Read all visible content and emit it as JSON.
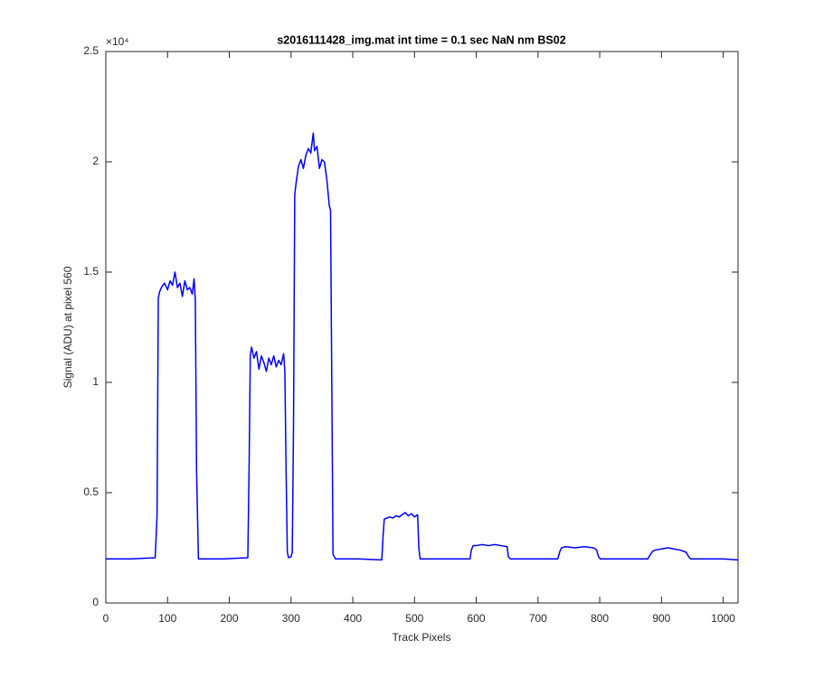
{
  "chart_data": {
    "type": "line",
    "title": "s2016111428_img.mat int time = 0.1 sec  NaN nm BS02",
    "xlabel": "Track Pixels",
    "ylabel": "Signal (ADU) at pixel 560",
    "y_exponent_label": "×10⁴",
    "x": [
      0,
      40,
      80,
      83,
      85,
      87,
      90,
      95,
      100,
      104,
      108,
      112,
      116,
      120,
      124,
      128,
      132,
      136,
      140,
      143,
      145,
      147,
      150,
      190,
      230,
      232,
      234,
      236,
      240,
      244,
      248,
      252,
      256,
      260,
      264,
      268,
      272,
      276,
      280,
      284,
      288,
      290,
      292,
      294,
      296,
      300,
      302,
      304,
      306,
      308,
      312,
      316,
      320,
      324,
      328,
      332,
      336,
      338,
      342,
      346,
      350,
      354,
      358,
      362,
      364,
      366,
      368,
      372,
      410,
      447,
      449,
      451,
      455,
      460,
      465,
      470,
      475,
      480,
      485,
      490,
      495,
      500,
      505,
      507,
      509,
      550,
      590,
      592,
      595,
      600,
      610,
      620,
      630,
      640,
      650,
      652,
      655,
      700,
      732,
      735,
      738,
      745,
      760,
      775,
      790,
      795,
      798,
      801,
      840,
      878,
      882,
      886,
      890,
      900,
      910,
      920,
      930,
      940,
      944,
      947,
      1000,
      1024
    ],
    "series": [
      {
        "name": "signal",
        "color": "#0000ff",
        "values": [
          2000,
          2000,
          2050,
          4000,
          13800,
          14100,
          14300,
          14500,
          14200,
          14600,
          14400,
          15000,
          14300,
          14500,
          13900,
          14600,
          14200,
          14300,
          14000,
          14700,
          13700,
          6000,
          2000,
          2000,
          2050,
          6000,
          11200,
          11600,
          11100,
          11400,
          10600,
          11200,
          10900,
          10500,
          11100,
          10800,
          11200,
          10700,
          11000,
          10800,
          11300,
          10500,
          6000,
          2300,
          2050,
          2100,
          2300,
          8000,
          18500,
          19000,
          19800,
          20100,
          19700,
          20300,
          20600,
          20400,
          21300,
          20500,
          20700,
          19700,
          20100,
          20000,
          19200,
          18000,
          17800,
          10000,
          2200,
          2000,
          2000,
          1950,
          3000,
          3800,
          3850,
          3900,
          3850,
          3950,
          3900,
          4000,
          4100,
          3950,
          4050,
          3900,
          4000,
          2500,
          2000,
          2000,
          2000,
          2400,
          2600,
          2600,
          2650,
          2600,
          2650,
          2600,
          2550,
          2100,
          2000,
          2000,
          2000,
          2300,
          2500,
          2550,
          2500,
          2550,
          2500,
          2400,
          2100,
          2000,
          2000,
          2000,
          2200,
          2350,
          2400,
          2450,
          2500,
          2450,
          2400,
          2300,
          2100,
          2000,
          2000,
          1950
        ]
      }
    ],
    "xlim": [
      0,
      1024
    ],
    "xticks": [
      0,
      100,
      200,
      300,
      400,
      500,
      600,
      700,
      800,
      900,
      1000
    ],
    "ylim": [
      0,
      25000
    ],
    "yticks": [
      0,
      {
        "value": 5000,
        "label": "0.5"
      },
      {
        "value": 10000,
        "label": "1"
      },
      {
        "value": 15000,
        "label": "1.5"
      },
      {
        "value": 20000,
        "label": "2"
      },
      {
        "value": 25000,
        "label": "2.5"
      }
    ],
    "grid": false
  }
}
